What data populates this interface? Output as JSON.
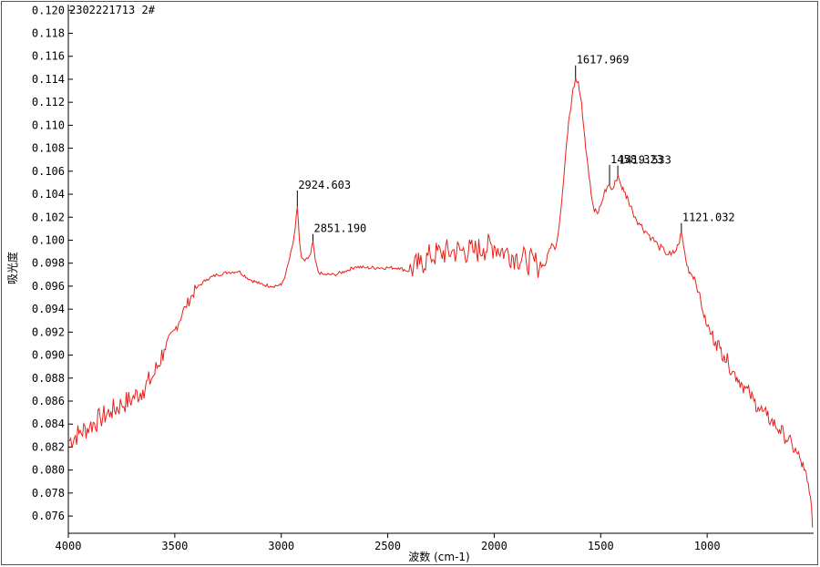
{
  "chart_data": {
    "type": "line",
    "title": "2302221713 2#",
    "xlabel": "波数 (cm-1)",
    "ylabel": "吸光度",
    "xlim": [
      4000,
      500
    ],
    "ylim": [
      0.0745,
      0.1205
    ],
    "x_ticks": [
      4000,
      3500,
      3000,
      2500,
      2000,
      1500,
      1000
    ],
    "x_tick_labels": [
      "4000",
      "3500",
      "3000",
      "2500",
      "2000",
      "1500",
      "1000"
    ],
    "y_ticks": [
      0.076,
      0.078,
      0.08,
      0.082,
      0.084,
      0.086,
      0.088,
      0.09,
      0.092,
      0.094,
      0.096,
      0.098,
      0.1,
      0.102,
      0.104,
      0.106,
      0.108,
      0.11,
      0.112,
      0.114,
      0.116,
      0.118,
      0.12
    ],
    "y_tick_labels": [
      "0.076",
      "0.078",
      "0.080",
      "0.082",
      "0.084",
      "0.086",
      "0.088",
      "0.090",
      "0.092",
      "0.094",
      "0.096",
      "0.098",
      "0.100",
      "0.102",
      "0.104",
      "0.106",
      "0.108",
      "0.110",
      "0.112",
      "0.114",
      "0.116",
      "0.118",
      "0.120"
    ],
    "grid": false,
    "series_color": "#e8201a",
    "peaks": [
      {
        "x": 2924.603,
        "y": 0.1029,
        "label": "2924.603"
      },
      {
        "x": 2851.19,
        "y": 0.0999,
        "label": "2851.190"
      },
      {
        "x": 1617.969,
        "y": 0.1141,
        "label": "1617.969"
      },
      {
        "x": 1458.323,
        "y": 0.1048,
        "label": "1458.323"
      },
      {
        "x": 1419.533,
        "y": 0.1057,
        "label": "1419.533"
      },
      {
        "x": 1121.032,
        "y": 0.1007,
        "label": "1121.032"
      }
    ],
    "series": [
      {
        "x": [
          4000,
          3950,
          3900,
          3850,
          3800,
          3750,
          3700,
          3650,
          3600,
          3550,
          3500,
          3450,
          3400,
          3350,
          3300,
          3250,
          3200,
          3150,
          3100,
          3050,
          3000,
          2980,
          2960,
          2945,
          2935,
          2924.603,
          2915,
          2905,
          2890,
          2875,
          2862,
          2851.19,
          2840,
          2825,
          2800,
          2750,
          2700,
          2650,
          2600,
          2550,
          2500,
          2450,
          2400,
          2350,
          2300,
          2250,
          2200,
          2150,
          2100,
          2050,
          2000,
          1950,
          1900,
          1850,
          1800,
          1760,
          1745,
          1730,
          1715,
          1700,
          1680,
          1660,
          1645,
          1630,
          1617.969,
          1605,
          1590,
          1575,
          1560,
          1545,
          1530,
          1515,
          1500,
          1485,
          1470,
          1458.323,
          1448,
          1438,
          1428,
          1419.533,
          1405,
          1390,
          1370,
          1350,
          1320,
          1290,
          1260,
          1230,
          1200,
          1170,
          1150,
          1135,
          1121.032,
          1110,
          1095,
          1080,
          1060,
          1040,
          1020,
          1000,
          980,
          960,
          940,
          920,
          900,
          880,
          860,
          840,
          820,
          800,
          780,
          760,
          740,
          720,
          700,
          680,
          660,
          640,
          620,
          600,
          580,
          560,
          545,
          530,
          520,
          510,
          505
        ],
        "y": [
          0.0825,
          0.0832,
          0.0838,
          0.0845,
          0.0851,
          0.0857,
          0.0862,
          0.087,
          0.0882,
          0.0905,
          0.0922,
          0.0942,
          0.0958,
          0.0966,
          0.097,
          0.0972,
          0.0973,
          0.0966,
          0.0962,
          0.096,
          0.0961,
          0.097,
          0.0985,
          0.0997,
          0.101,
          0.1029,
          0.1,
          0.0985,
          0.0982,
          0.0984,
          0.0988,
          0.0999,
          0.0982,
          0.0972,
          0.097,
          0.097,
          0.0973,
          0.0977,
          0.0976,
          0.0976,
          0.0976,
          0.0976,
          0.0973,
          0.0979,
          0.0986,
          0.0989,
          0.099,
          0.0991,
          0.099,
          0.0993,
          0.0995,
          0.099,
          0.0986,
          0.0982,
          0.0979,
          0.0978,
          0.099,
          0.0997,
          0.0992,
          0.1005,
          0.104,
          0.1085,
          0.111,
          0.1132,
          0.1141,
          0.1138,
          0.112,
          0.109,
          0.1065,
          0.104,
          0.1025,
          0.1023,
          0.103,
          0.104,
          0.1046,
          0.1048,
          0.1044,
          0.1046,
          0.1052,
          0.1057,
          0.1048,
          0.1042,
          0.1035,
          0.1025,
          0.1015,
          0.1008,
          0.1002,
          0.0995,
          0.099,
          0.0987,
          0.099,
          0.0996,
          0.1007,
          0.0994,
          0.0978,
          0.0972,
          0.0968,
          0.0955,
          0.0938,
          0.0925,
          0.0918,
          0.0912,
          0.0906,
          0.09,
          0.0893,
          0.0886,
          0.0881,
          0.0876,
          0.0871,
          0.0866,
          0.086,
          0.0855,
          0.0851,
          0.0847,
          0.0843,
          0.0839,
          0.0835,
          0.0831,
          0.0826,
          0.0821,
          0.0815,
          0.0808,
          0.08,
          0.079,
          0.078,
          0.0768,
          0.075
        ]
      }
    ]
  }
}
